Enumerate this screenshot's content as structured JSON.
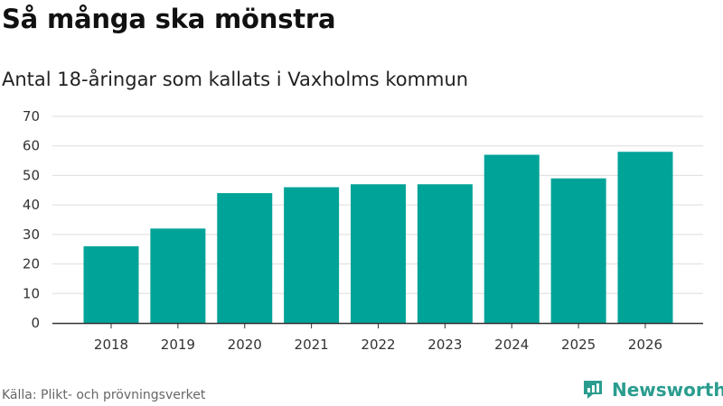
{
  "title": "Så många ska mönstra",
  "subtitle": "Antal 18-åringar som kallats i Vaxholms kommun",
  "source": "Källa: Plikt- och prövningsverket",
  "brand": "Newsworthy",
  "colors": {
    "bar": "#00a398",
    "grid": "#dddddd",
    "axis": "#333333",
    "brand": "#2a9d8f"
  },
  "chart_data": {
    "type": "bar",
    "categories": [
      "2018",
      "2019",
      "2020",
      "2021",
      "2022",
      "2023",
      "2024",
      "2025",
      "2026"
    ],
    "values": [
      26,
      32,
      44,
      46,
      47,
      47,
      57,
      49,
      58
    ],
    "ylim": [
      0,
      70
    ],
    "yticks": [
      0,
      10,
      20,
      30,
      40,
      50,
      60,
      70
    ],
    "grid": true
  }
}
